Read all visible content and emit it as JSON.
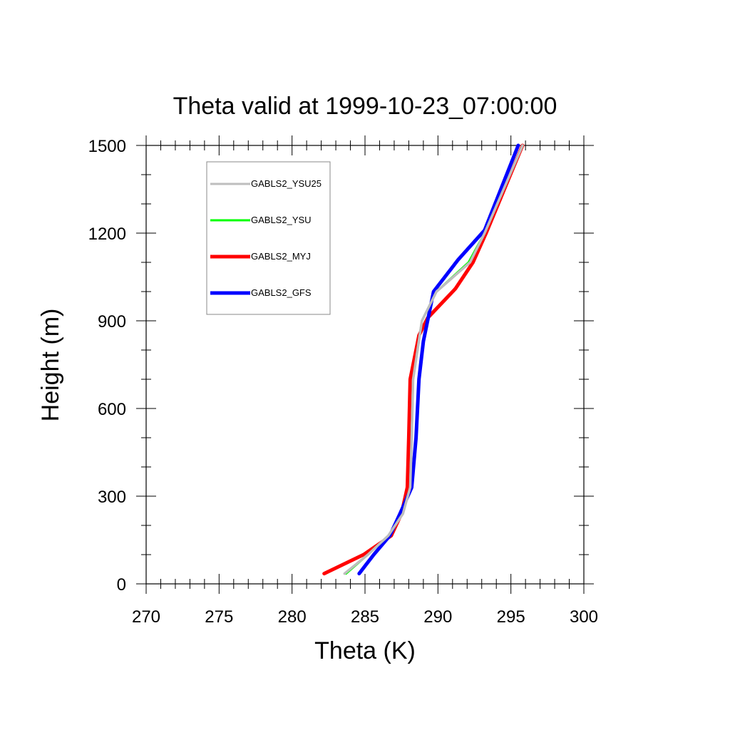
{
  "chart_data": {
    "type": "line",
    "title": "Theta valid at 1999-10-23_07:00:00",
    "xlabel": "Theta (K)",
    "ylabel": "Height (m)",
    "xlim": [
      270,
      300
    ],
    "ylim": [
      0,
      1500
    ],
    "xticks": [
      "270",
      "275",
      "280",
      "285",
      "290",
      "295",
      "300"
    ],
    "yticks": [
      "0",
      "300",
      "600",
      "900",
      "1200",
      "1500"
    ],
    "legend_position": "top-left",
    "grid": false,
    "series": [
      {
        "name": "GABLS2_YSU25",
        "color": "#bebebe",
        "points": [
          [
            283.6,
            35
          ],
          [
            285.2,
            100
          ],
          [
            286.6,
            165
          ],
          [
            287.6,
            240
          ],
          [
            288.1,
            330
          ],
          [
            288.2,
            500
          ],
          [
            288.3,
            700
          ],
          [
            288.9,
            900
          ],
          [
            289.9,
            1000
          ],
          [
            292.2,
            1100
          ],
          [
            293.2,
            1200
          ],
          [
            295.8,
            1500
          ]
        ]
      },
      {
        "name": "GABLS2_YSU",
        "color": "#00ff00",
        "points": [
          [
            283.7,
            35
          ],
          [
            285.2,
            100
          ],
          [
            286.6,
            165
          ],
          [
            287.6,
            240
          ],
          [
            288.1,
            330
          ],
          [
            288.2,
            500
          ],
          [
            288.3,
            700
          ],
          [
            288.9,
            900
          ],
          [
            289.9,
            1000
          ],
          [
            292.1,
            1100
          ],
          [
            293.2,
            1200
          ],
          [
            295.8,
            1500
          ]
        ]
      },
      {
        "name": "GABLS2_MYJ",
        "color": "#ff0000",
        "points": [
          [
            282.2,
            35
          ],
          [
            284.9,
            100
          ],
          [
            286.8,
            165
          ],
          [
            287.5,
            240
          ],
          [
            287.9,
            330
          ],
          [
            288.0,
            500
          ],
          [
            288.1,
            700
          ],
          [
            288.7,
            850
          ],
          [
            289.3,
            910
          ],
          [
            291.2,
            1010
          ],
          [
            292.4,
            1100
          ],
          [
            293.3,
            1200
          ],
          [
            295.8,
            1500
          ]
        ]
      },
      {
        "name": "GABLS2_GFS",
        "color": "#0000ff",
        "points": [
          [
            284.6,
            35
          ],
          [
            285.6,
            100
          ],
          [
            286.7,
            165
          ],
          [
            287.4,
            240
          ],
          [
            288.2,
            330
          ],
          [
            288.5,
            500
          ],
          [
            288.7,
            700
          ],
          [
            289.0,
            830
          ],
          [
            289.7,
            1000
          ],
          [
            291.4,
            1110
          ],
          [
            293.2,
            1210
          ],
          [
            295.5,
            1500
          ]
        ]
      }
    ]
  }
}
